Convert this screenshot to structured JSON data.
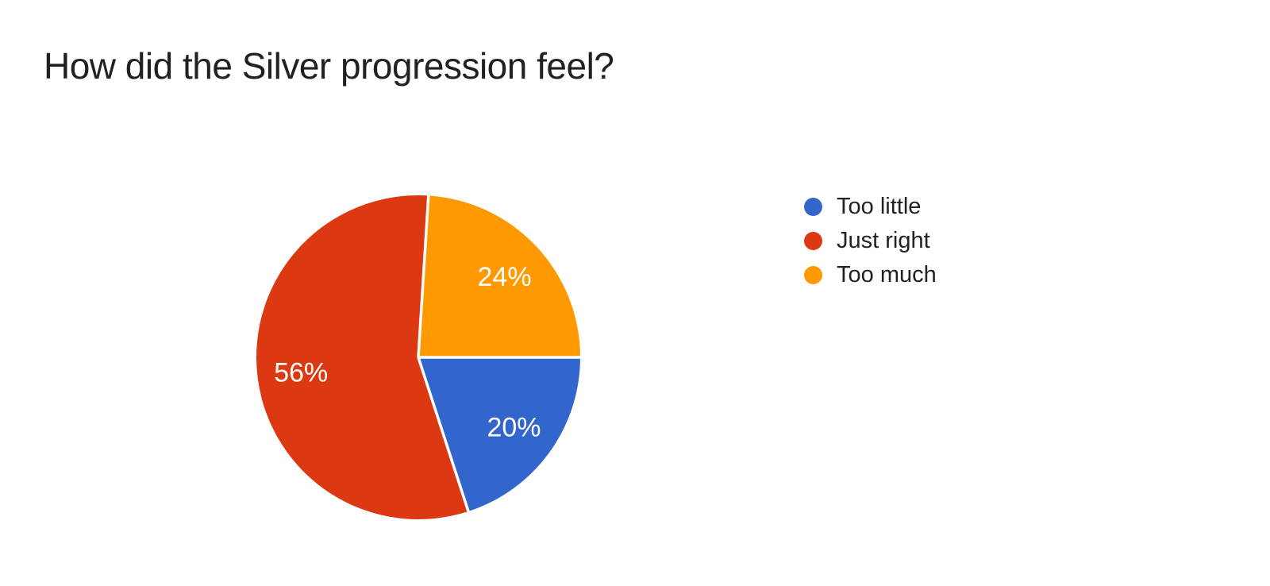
{
  "page": {
    "background_color": "#ffffff"
  },
  "chart_data": {
    "type": "pie",
    "title": "How did the Silver progression feel?",
    "legend_position": "right",
    "direction": "clockwise",
    "start_angle_clockwise_from_north_deg": 90,
    "slice_gap_color": "#ffffff",
    "data_label_color": "#ffffff",
    "slices": [
      {
        "label": "Too little",
        "value_pct": 20,
        "data_label": "20%",
        "color": "#3366CC"
      },
      {
        "label": "Just right",
        "value_pct": 56,
        "data_label": "56%",
        "color": "#DC3912"
      },
      {
        "label": "Too much",
        "value_pct": 24,
        "data_label": "24%",
        "color": "#FF9900"
      }
    ]
  }
}
